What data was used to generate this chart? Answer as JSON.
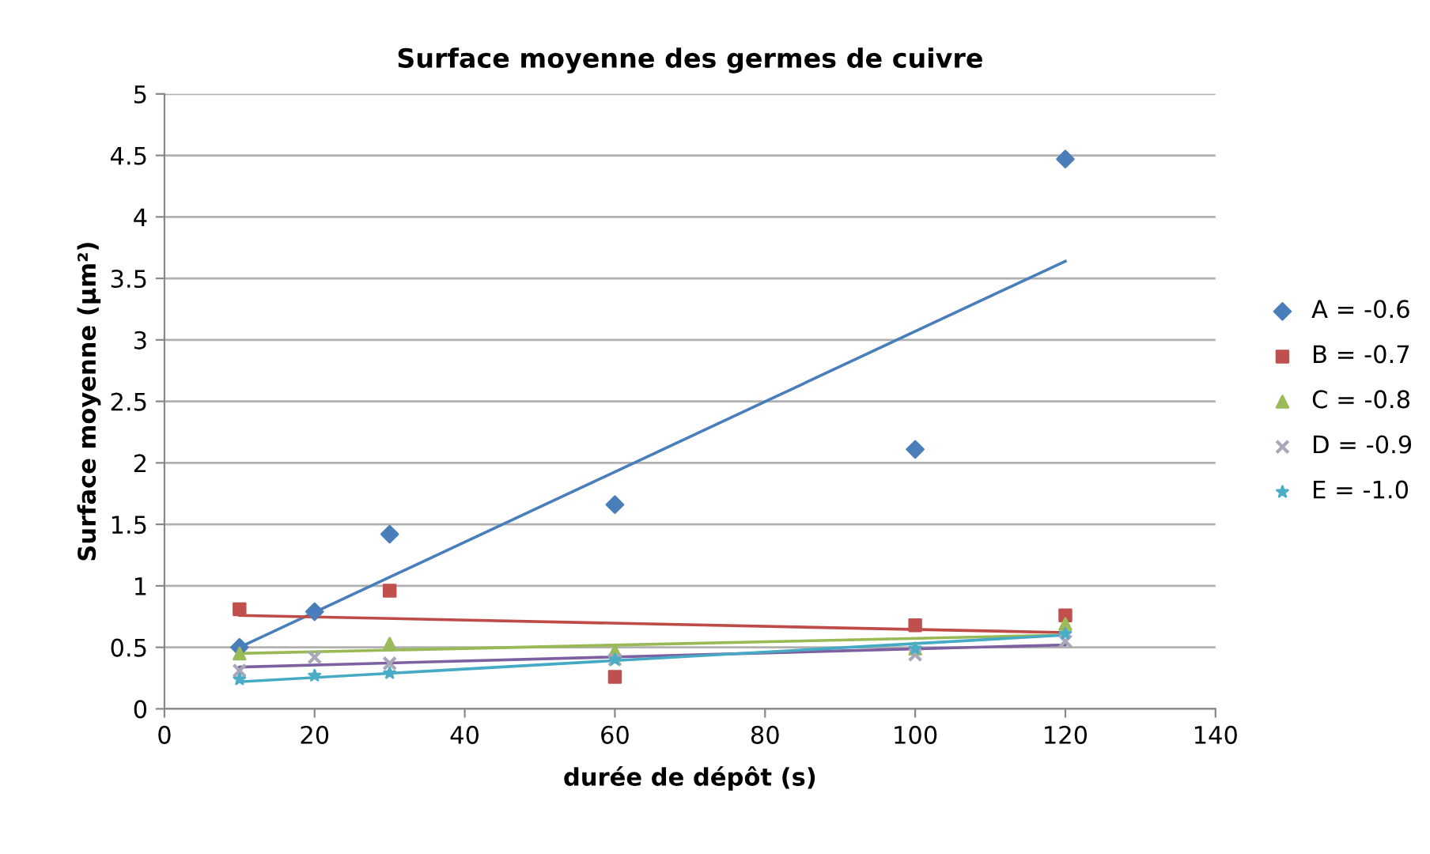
{
  "chart_data": {
    "type": "scatter",
    "title": "Surface moyenne des germes de cuivre",
    "xlabel": "durée de dépôt (s)",
    "ylabel": "Surface moyenne (µm²)",
    "xlim": [
      0,
      140
    ],
    "xticks": [
      0,
      20,
      40,
      60,
      80,
      100,
      120,
      140
    ],
    "ylim": [
      0,
      5
    ],
    "yticks": [
      0,
      0.5,
      1,
      1.5,
      2,
      2.5,
      3,
      3.5,
      4,
      4.5,
      5
    ],
    "grid": "y",
    "legend": "right",
    "series": [
      {
        "name": "A = -0.6",
        "color": "#4a7ebb",
        "marker": "diamond",
        "x": [
          10,
          20,
          30,
          60,
          100,
          120
        ],
        "values": [
          0.5,
          0.79,
          1.42,
          1.66,
          2.11,
          4.47
        ]
      },
      {
        "name": "B = -0.7",
        "color": "#c0504d",
        "marker": "square",
        "x": [
          10,
          30,
          60,
          100,
          120
        ],
        "values": [
          0.81,
          0.96,
          0.26,
          0.68,
          0.76
        ]
      },
      {
        "name": "C = -0.8",
        "color": "#9bbb59",
        "marker": "triangle",
        "x": [
          10,
          30,
          60,
          100,
          120
        ],
        "values": [
          0.45,
          0.53,
          0.47,
          0.49,
          0.69
        ]
      },
      {
        "name": "D = -0.9",
        "color": "#a8a8b8",
        "marker": "cross",
        "x": [
          10,
          20,
          30,
          60,
          100,
          120
        ],
        "values": [
          0.31,
          0.42,
          0.37,
          0.4,
          0.44,
          0.55
        ]
      },
      {
        "name": "E = -1.0",
        "color": "#4bacc6",
        "marker": "star",
        "x": [
          10,
          20,
          30,
          60,
          100,
          120
        ],
        "values": [
          0.24,
          0.27,
          0.29,
          0.4,
          0.49,
          0.61
        ]
      },
      {
        "type": "line",
        "color": "#4a7ebb",
        "x": [
          10,
          120
        ],
        "values": [
          0.5,
          3.64
        ]
      },
      {
        "type": "line",
        "color": "#be4b48",
        "x": [
          10,
          120
        ],
        "values": [
          0.76,
          0.62
        ]
      },
      {
        "type": "line",
        "color": "#98b954",
        "x": [
          10,
          120
        ],
        "values": [
          0.45,
          0.6
        ]
      },
      {
        "type": "line",
        "color": "#7d60a0",
        "x": [
          10,
          120
        ],
        "values": [
          0.34,
          0.52
        ]
      },
      {
        "type": "line",
        "color": "#46aac5",
        "x": [
          10,
          120
        ],
        "values": [
          0.22,
          0.6
        ]
      }
    ]
  }
}
